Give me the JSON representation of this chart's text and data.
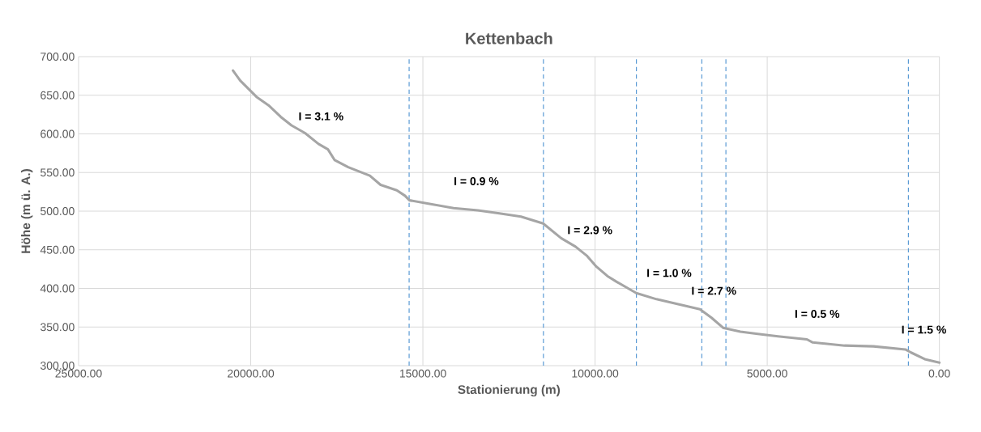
{
  "chart_data": {
    "type": "line",
    "title": "Kettenbach",
    "xlabel": "Stationierung (m)",
    "ylabel": "Höhe (m ü. A.)",
    "x": [
      20517,
      20305,
      19834,
      19482,
      19129,
      18816,
      18423,
      18033,
      17758,
      17562,
      17170,
      16542,
      16229,
      15758,
      15523,
      15389,
      14740,
      14112,
      13406,
      12778,
      12153,
      11508,
      10986,
      10568,
      10231,
      9980,
      9643,
      9392,
      8804,
      8216,
      7712,
      6955,
      6619,
      6282,
      5779,
      5276,
      4688,
      3848,
      3678,
      2754,
      1915,
      990,
      823,
      402,
      0
    ],
    "series": [
      {
        "color": "#a5a5a5",
        "values": [
          682,
          669,
          648,
          637,
          622,
          611,
          601,
          587,
          580,
          566,
          557,
          546,
          534,
          527,
          520,
          514,
          509,
          504,
          501,
          497,
          493,
          484,
          465,
          454,
          442,
          429,
          416,
          409,
          394,
          386,
          381,
          373,
          362,
          349,
          344,
          341,
          338,
          334,
          330,
          326,
          325,
          321,
          317,
          308,
          304
        ]
      }
    ],
    "xlim": [
      25000,
      0
    ],
    "xticks": [
      {
        "value": 25000,
        "label": "25000.00"
      },
      {
        "value": 20000,
        "label": "20000.00"
      },
      {
        "value": 15000,
        "label": "15000.00"
      },
      {
        "value": 10000,
        "label": "10000.00"
      },
      {
        "value": 5000,
        "label": "5000.00"
      },
      {
        "value": 0,
        "label": "0.00"
      }
    ],
    "ylim": [
      300,
      700
    ],
    "yticks": [
      {
        "value": 300,
        "label": "300.00"
      },
      {
        "value": 350,
        "label": "350.00"
      },
      {
        "value": 400,
        "label": "400.00"
      },
      {
        "value": 450,
        "label": "450.00"
      },
      {
        "value": 500,
        "label": "500.00"
      },
      {
        "value": 550,
        "label": "550.00"
      },
      {
        "value": 600,
        "label": "600.00"
      },
      {
        "value": 650,
        "label": "650.00"
      },
      {
        "value": 700,
        "label": "700.00"
      }
    ],
    "ref_lines": [
      {
        "axis": "x",
        "value": 15400,
        "color": "#5b9bd5",
        "line_style": "dashed"
      },
      {
        "axis": "x",
        "value": 11500,
        "color": "#5b9bd5",
        "line_style": "dashed"
      },
      {
        "axis": "x",
        "value": 8800,
        "color": "#5b9bd5",
        "line_style": "dashed"
      },
      {
        "axis": "x",
        "value": 6900,
        "color": "#5b9bd5",
        "line_style": "dashed"
      },
      {
        "axis": "x",
        "value": 6200,
        "color": "#5b9bd5",
        "line_style": "dashed"
      },
      {
        "axis": "x",
        "value": 900,
        "color": "#5b9bd5",
        "line_style": "dashed"
      }
    ],
    "annotations": [
      "I = 3.1 %",
      "I = 0.9 %",
      "I = 2.9 %",
      "I = 1.0 %",
      "I = 2.7 %",
      "I = 0.5 %",
      "I = 1.5 %"
    ],
    "grid": true,
    "marker": "none",
    "line_style": "solid"
  }
}
